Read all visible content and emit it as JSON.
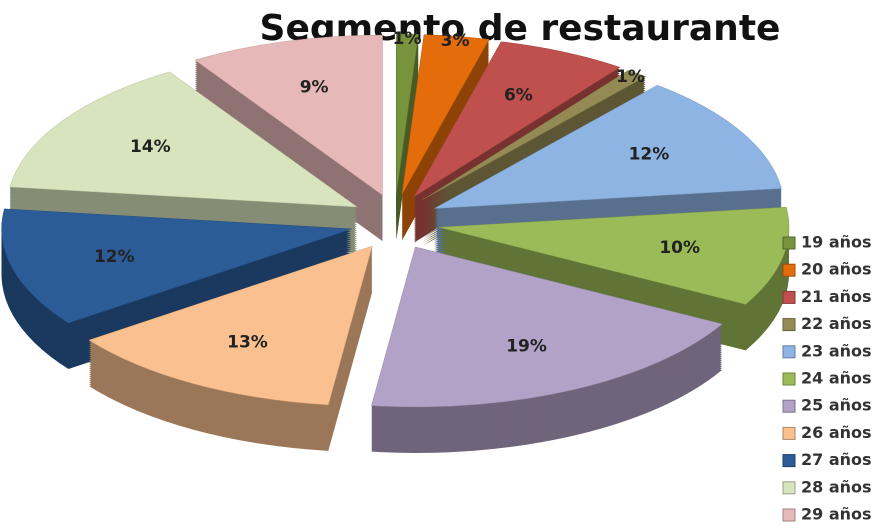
{
  "chart_data": {
    "type": "pie",
    "title": "Segmento de restaurante",
    "categories": [
      "19 años",
      "20 años",
      "21 años",
      "22 años",
      "23 años",
      "24 años",
      "25 años",
      "26 años",
      "27 años",
      "28 años",
      "29 años"
    ],
    "values": [
      1,
      3,
      6,
      1,
      12,
      10,
      19,
      13,
      12,
      14,
      9
    ],
    "value_labels": [
      "1%",
      "3%",
      "6%",
      "1%",
      "12%",
      "10%",
      "19%",
      "13%",
      "12%",
      "14%",
      "9%"
    ],
    "colors": [
      "#77933C",
      "#E46C0A",
      "#C0504D",
      "#948A54",
      "#8EB4E3",
      "#9BBB59",
      "#B3A2C7",
      "#FAC090",
      "#2C5C97",
      "#D7E4BD",
      "#E6B9B8"
    ],
    "legend": "right"
  }
}
